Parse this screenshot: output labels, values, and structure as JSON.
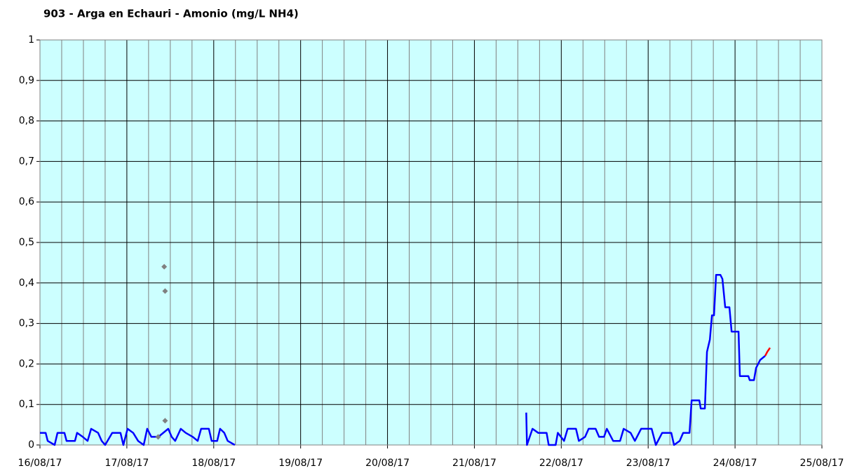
{
  "chart_data": {
    "type": "line",
    "title": "903 - Arga en Echauri - Amonio (mg/L NH4)",
    "xlim": [
      0,
      9
    ],
    "xticks": [
      {
        "value": 0,
        "label": "16/08/17"
      },
      {
        "value": 1,
        "label": "17/08/17"
      },
      {
        "value": 2,
        "label": "18/08/17"
      },
      {
        "value": 3,
        "label": "19/08/17"
      },
      {
        "value": 4,
        "label": "20/08/17"
      },
      {
        "value": 5,
        "label": "21/08/17"
      },
      {
        "value": 6,
        "label": "22/08/17"
      },
      {
        "value": 7,
        "label": "23/08/17"
      },
      {
        "value": 8,
        "label": "24/08/17"
      },
      {
        "value": 9,
        "label": "25/08/17"
      }
    ],
    "xminorticks": [
      0.25,
      0.5,
      0.75,
      1.25,
      1.5,
      1.75,
      2.25,
      2.5,
      2.75,
      3.25,
      3.5,
      3.75,
      4.25,
      4.5,
      4.75,
      5.25,
      5.5,
      5.75,
      6.25,
      6.5,
      6.75,
      7.25,
      7.5,
      7.75,
      8.25,
      8.5,
      8.75
    ],
    "ylim": [
      0,
      1
    ],
    "yticks": [
      0,
      {
        "value": 0.1,
        "label": "0,1"
      },
      {
        "value": 0.2,
        "label": "0,2"
      },
      {
        "value": 0.3,
        "label": "0,3"
      },
      {
        "value": 0.4,
        "label": "0,4"
      },
      {
        "value": 0.5,
        "label": "0,5"
      },
      {
        "value": 0.6,
        "label": "0,6"
      },
      {
        "value": 0.7,
        "label": "0,7"
      },
      {
        "value": 0.8,
        "label": "0,8"
      },
      {
        "value": 0.9,
        "label": "0,9"
      },
      1
    ],
    "grid": true,
    "background": "#ccffff",
    "series": [
      {
        "color": "#0000ff",
        "x": [
          0,
          0.065,
          0.089,
          0.169,
          0.202,
          0.282,
          0.306,
          0.403,
          0.427,
          0.492,
          0.548,
          0.589,
          0.669,
          0.71,
          0.75,
          0.831,
          0.927,
          0.96,
          1.008,
          1.073,
          1.129,
          1.194,
          1.234,
          1.282,
          1.363,
          1.476,
          1.516,
          1.556,
          1.621,
          1.677,
          1.758,
          1.815,
          1.855,
          1.944,
          1.976,
          2.04,
          2.073,
          2.121,
          2.161,
          2.242,
          null,
          5.597,
          5.605,
          5.669,
          5.734,
          5.831,
          5.855,
          5.935,
          5.96,
          6.032,
          6.073,
          6.169,
          6.202,
          6.274,
          6.315,
          6.395,
          6.435,
          6.492,
          6.524,
          6.597,
          6.677,
          6.718,
          6.798,
          6.847,
          6.919,
          7.04,
          7.089,
          7.161,
          7.266,
          7.298,
          7.363,
          7.403,
          7.476,
          7.5,
          7.589,
          7.605,
          7.653,
          7.677,
          7.71,
          7.734,
          7.758,
          7.782,
          7.831,
          7.855,
          7.887,
          7.935,
          7.96,
          8.04,
          8.056,
          8.153,
          8.169,
          8.218,
          8.242,
          8.29,
          8.347
        ],
        "values": [
          0.03,
          0.03,
          0.01,
          0,
          0.03,
          0.03,
          0.01,
          0.01,
          0.03,
          0.02,
          0.01,
          0.04,
          0.03,
          0.01,
          0,
          0.03,
          0.03,
          0,
          0.04,
          0.03,
          0.01,
          0,
          0.04,
          0.02,
          0.02,
          0.04,
          0.02,
          0.01,
          0.04,
          0.03,
          0.02,
          0.01,
          0.04,
          0.04,
          0.01,
          0.01,
          0.04,
          0.03,
          0.01,
          0,
          null,
          0.08,
          0,
          0.04,
          0.03,
          0.03,
          0,
          0,
          0.03,
          0.01,
          0.04,
          0.04,
          0.01,
          0.02,
          0.04,
          0.04,
          0.02,
          0.02,
          0.04,
          0.01,
          0.01,
          0.04,
          0.03,
          0.01,
          0.04,
          0.04,
          0,
          0.03,
          0.03,
          0,
          0.01,
          0.03,
          0.03,
          0.11,
          0.11,
          0.09,
          0.09,
          0.23,
          0.26,
          0.32,
          0.32,
          0.42,
          0.42,
          0.41,
          0.34,
          0.34,
          0.28,
          0.28,
          0.17,
          0.17,
          0.16,
          0.16,
          0.19,
          0.21,
          0.22
        ]
      },
      {
        "color": "#ff0000",
        "x": [
          8.347,
          8.371,
          8.403
        ],
        "values": [
          0.22,
          0.23,
          0.24
        ]
      },
      {
        "color": "#808080",
        "marker": "diamond",
        "x": [
          1.43,
          1.44,
          1.44,
          1.36
        ],
        "values": [
          0.44,
          0.38,
          0.06,
          0.02
        ]
      }
    ]
  }
}
